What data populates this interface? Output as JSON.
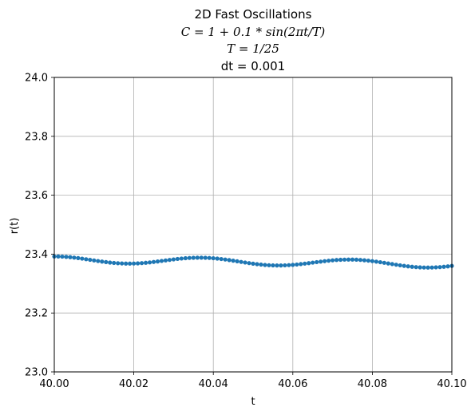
{
  "chart_data": {
    "type": "scatter",
    "title_lines": [
      "2D Fast Oscillations",
      "C = 1 + 0.1 * sin(2πt/T)",
      "T = 1/25",
      "dt = 0.001"
    ],
    "xlabel": "t",
    "ylabel": "r(t)",
    "xlim": [
      40.0,
      40.1
    ],
    "ylim": [
      23.0,
      24.0
    ],
    "x_ticks": [
      "40.00",
      "40.02",
      "40.04",
      "40.06",
      "40.08",
      "40.10"
    ],
    "y_ticks": [
      "23.0",
      "23.2",
      "23.4",
      "23.6",
      "23.8",
      "24.0"
    ],
    "grid": true,
    "marker_color": "#1f77b4",
    "grid_color": "#b0b0b0",
    "series": [
      {
        "x": [
          40.0,
          40.001,
          40.002,
          40.003,
          40.004,
          40.005,
          40.006,
          40.007,
          40.008,
          40.009,
          40.01,
          40.011,
          40.012,
          40.013,
          40.014,
          40.015,
          40.016,
          40.017,
          40.018,
          40.019,
          40.02,
          40.021,
          40.022,
          40.023,
          40.024,
          40.025,
          40.026,
          40.027,
          40.028,
          40.029,
          40.03,
          40.031,
          40.032,
          40.033,
          40.034,
          40.035,
          40.036,
          40.037,
          40.038,
          40.039,
          40.04,
          40.041,
          40.042,
          40.043,
          40.044,
          40.045,
          40.046,
          40.047,
          40.048,
          40.049,
          40.05,
          40.051,
          40.052,
          40.053,
          40.054,
          40.055,
          40.056,
          40.057,
          40.058,
          40.059,
          40.06,
          40.061,
          40.062,
          40.063,
          40.064,
          40.065,
          40.066,
          40.067,
          40.068,
          40.069,
          40.07,
          40.071,
          40.072,
          40.073,
          40.074,
          40.075,
          40.076,
          40.077,
          40.078,
          40.079,
          40.08,
          40.081,
          40.082,
          40.083,
          40.084,
          40.085,
          40.086,
          40.087,
          40.088,
          40.089,
          40.09,
          40.091,
          40.092,
          40.093,
          40.094,
          40.095,
          40.096,
          40.097,
          40.098,
          40.099,
          40.1
        ],
        "y": [
          23.392,
          23.3919,
          23.3914,
          23.3906,
          23.3895,
          23.3881,
          23.3865,
          23.3846,
          23.3826,
          23.3806,
          23.3785,
          23.3765,
          23.3746,
          23.3729,
          23.3713,
          23.37,
          23.369,
          23.3683,
          23.3679,
          23.3678,
          23.368,
          23.3685,
          23.3694,
          23.3705,
          23.3718,
          23.3734,
          23.375,
          23.3768,
          23.3786,
          23.3803,
          23.382,
          23.3836,
          23.385,
          23.3861,
          23.387,
          23.3876,
          23.3879,
          23.3879,
          23.3876,
          23.387,
          23.386,
          23.3848,
          23.3833,
          23.3816,
          23.3797,
          23.3777,
          23.3756,
          23.3735,
          23.3714,
          23.3694,
          23.3675,
          23.3658,
          23.3644,
          23.3632,
          23.3623,
          23.3617,
          23.3615,
          23.3615,
          23.3619,
          23.3626,
          23.3635,
          23.3647,
          23.3661,
          23.3677,
          23.3693,
          23.3711,
          23.3728,
          23.3745,
          23.3761,
          23.3776,
          23.3789,
          23.38,
          23.3808,
          23.3813,
          23.3815,
          23.3814,
          23.381,
          23.3802,
          23.3791,
          23.3778,
          23.3762,
          23.3744,
          23.3725,
          23.3704,
          23.3682,
          23.3661,
          23.364,
          23.3619,
          23.3601,
          23.3584,
          23.357,
          23.3558,
          23.355,
          23.3545,
          23.3543,
          23.3545,
          23.3551,
          23.3559,
          23.357,
          23.3584,
          23.36
        ]
      }
    ]
  }
}
